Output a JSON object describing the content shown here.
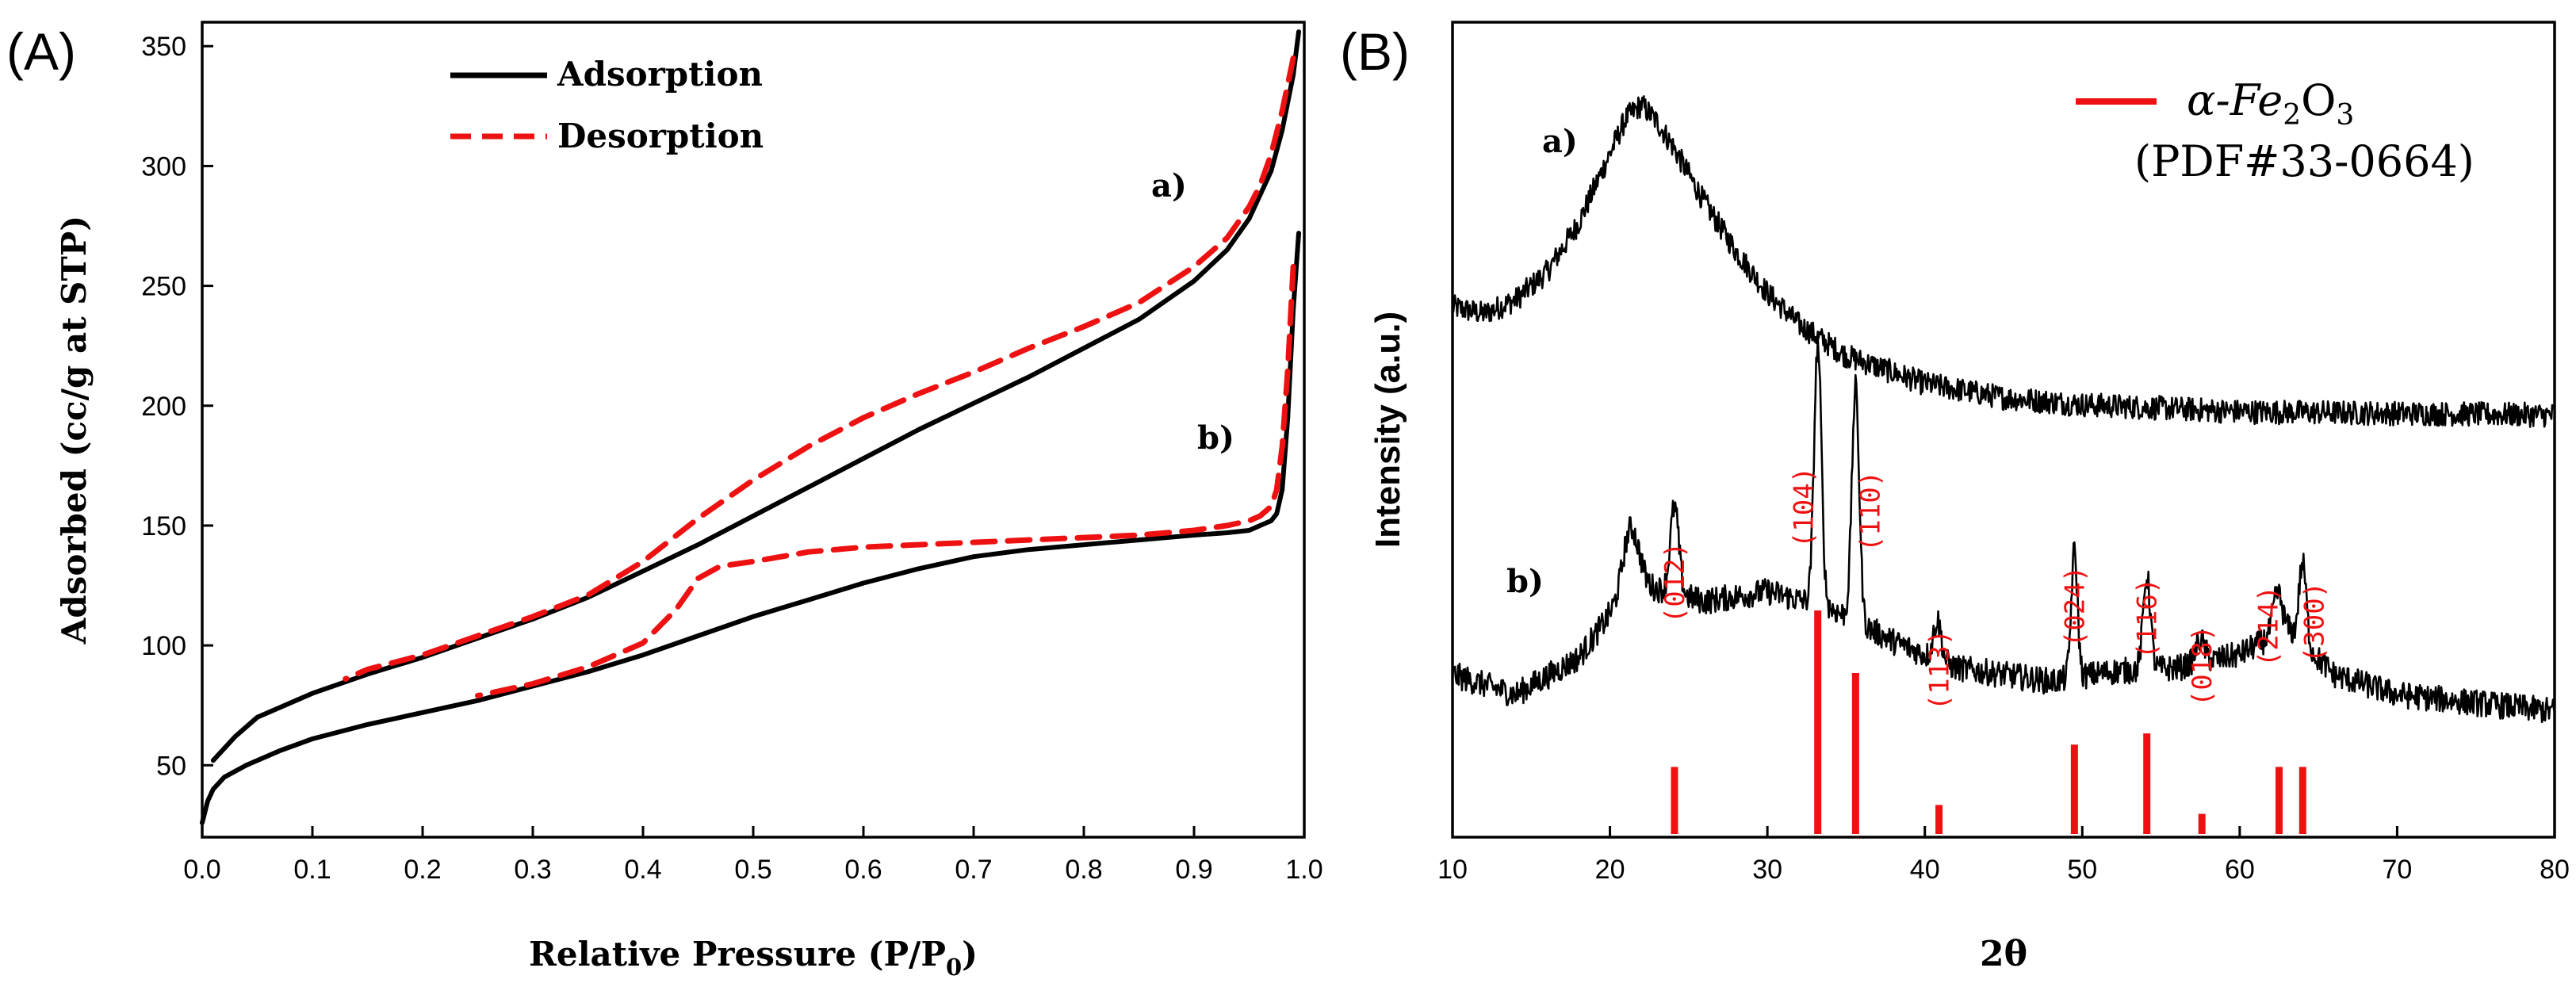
{
  "chart_data": [
    {
      "type": "line",
      "panel_label": "(A)",
      "xlabel": "Relative Pressure (P/P",
      "xlabel_sub": "0",
      "xlabel_close": ")",
      "ylabel": "Adsorbed (cc/g at STP)",
      "xlim": [
        0.0,
        1.0
      ],
      "ylim": [
        20,
        360
      ],
      "xticks": [
        0.0,
        0.1,
        0.2,
        0.3,
        0.4,
        0.5,
        0.6,
        0.7,
        0.8,
        0.9,
        1.0
      ],
      "xtick_labels": [
        "0.0",
        "0.1",
        "0.2",
        "0.3",
        "0.4",
        "0.5",
        "0.6",
        "0.7",
        "0.8",
        "0.9",
        "1.0"
      ],
      "yticks": [
        50,
        100,
        150,
        200,
        250,
        300,
        350
      ],
      "ytick_labels": [
        "50",
        "100",
        "150",
        "200",
        "250",
        "300",
        "350"
      ],
      "legend": [
        {
          "label": "Adsorption",
          "color": "#000000",
          "style": "solid"
        },
        {
          "label": "Desorption",
          "color": "#ee1111",
          "style": "dashed"
        }
      ],
      "annotations": [
        "a)",
        "b)"
      ],
      "series": [
        {
          "name": "a) Adsorption",
          "curve": "a",
          "kind": "adsorption",
          "x": [
            0.01,
            0.03,
            0.05,
            0.1,
            0.15,
            0.2,
            0.25,
            0.3,
            0.35,
            0.4,
            0.45,
            0.5,
            0.55,
            0.6,
            0.65,
            0.7,
            0.75,
            0.8,
            0.85,
            0.9,
            0.93,
            0.95,
            0.97,
            0.98,
            0.99,
            0.995
          ],
          "y": [
            52,
            62,
            70,
            80,
            88,
            95,
            103,
            111,
            120,
            131,
            142,
            154,
            166,
            178,
            190,
            201,
            212,
            224,
            236,
            252,
            265,
            278,
            298,
            315,
            338,
            356
          ]
        },
        {
          "name": "a) Desorption",
          "curve": "a",
          "kind": "desorption",
          "x": [
            0.99,
            0.98,
            0.97,
            0.96,
            0.95,
            0.93,
            0.9,
            0.85,
            0.8,
            0.75,
            0.7,
            0.65,
            0.6,
            0.55,
            0.5,
            0.45,
            0.4,
            0.35,
            0.3,
            0.25,
            0.2,
            0.15,
            0.13
          ],
          "y": [
            345,
            323,
            305,
            292,
            283,
            270,
            258,
            243,
            233,
            224,
            214,
            205,
            195,
            183,
            169,
            153,
            135,
            121,
            112,
            104,
            96,
            90,
            86
          ]
        },
        {
          "name": "b) Adsorption",
          "curve": "b",
          "kind": "adsorption",
          "x": [
            0.0,
            0.005,
            0.01,
            0.02,
            0.04,
            0.07,
            0.1,
            0.15,
            0.2,
            0.25,
            0.3,
            0.35,
            0.4,
            0.45,
            0.5,
            0.55,
            0.6,
            0.65,
            0.7,
            0.75,
            0.8,
            0.85,
            0.9,
            0.93,
            0.95,
            0.96,
            0.97,
            0.975,
            0.98,
            0.985,
            0.99,
            0.995
          ],
          "y": [
            26,
            35,
            40,
            45,
            50,
            56,
            61,
            67,
            72,
            77,
            83,
            89,
            96,
            104,
            112,
            119,
            126,
            132,
            137,
            140,
            142,
            144,
            146,
            147,
            148,
            150,
            152,
            155,
            165,
            195,
            240,
            272
          ]
        },
        {
          "name": "b) Desorption",
          "curve": "b",
          "kind": "desorption",
          "x": [
            0.99,
            0.985,
            0.98,
            0.975,
            0.97,
            0.96,
            0.95,
            0.93,
            0.9,
            0.85,
            0.8,
            0.75,
            0.7,
            0.65,
            0.6,
            0.55,
            0.5,
            0.47,
            0.45,
            0.43,
            0.4,
            0.35,
            0.3,
            0.25
          ],
          "y": [
            258,
            215,
            183,
            165,
            158,
            154,
            152,
            150,
            148,
            146,
            145,
            144,
            143,
            142,
            141,
            139,
            135,
            133,
            128,
            115,
            101,
            91,
            84,
            79
          ]
        }
      ]
    },
    {
      "type": "line",
      "panel_label": "(B)",
      "xlabel": "2θ",
      "ylabel": "Intensity (a.u.)",
      "xlim": [
        10,
        80
      ],
      "xticks": [
        10,
        20,
        30,
        40,
        50,
        60,
        70,
        80
      ],
      "xtick_labels": [
        "10",
        "20",
        "30",
        "40",
        "50",
        "60",
        "70",
        "80"
      ],
      "legend": [
        {
          "label_prefix": "α-Fe",
          "label_sub1": "2",
          "label_mid": "O",
          "label_sub2": "3",
          "label2": "(PDF#33-0664)",
          "color": "#ee1111",
          "style": "solid"
        }
      ],
      "annotations": [
        "a)",
        "b)"
      ],
      "series": [
        {
          "name": "a)",
          "description": "broad amorphous hump",
          "x": [
            10,
            12,
            14,
            16,
            18,
            20,
            21,
            22,
            23,
            24,
            26,
            28,
            30,
            32,
            35,
            40,
            45,
            50,
            55,
            60,
            70,
            80
          ],
          "y": [
            0.32,
            0.3,
            0.34,
            0.42,
            0.56,
            0.76,
            0.86,
            0.9,
            0.85,
            0.78,
            0.62,
            0.48,
            0.36,
            0.27,
            0.18,
            0.1,
            0.06,
            0.04,
            0.03,
            0.02,
            0.015,
            0.01
          ]
        },
        {
          "name": "b)",
          "description": "crystalline α-Fe2O3 pattern",
          "baseline_x": [
            10,
            14,
            18,
            20,
            22,
            26,
            30,
            34,
            38,
            42,
            48,
            52,
            56,
            60,
            63,
            66,
            70,
            74,
            80
          ],
          "baseline_y": [
            0.2,
            0.14,
            0.25,
            0.38,
            0.47,
            0.42,
            0.45,
            0.4,
            0.3,
            0.22,
            0.18,
            0.21,
            0.22,
            0.26,
            0.34,
            0.2,
            0.14,
            0.12,
            0.09
          ],
          "peaks": [
            {
              "x": 21.3,
              "h": 0.2,
              "w": 0.7
            },
            {
              "x": 24.1,
              "h": 0.26,
              "w": 0.38
            },
            {
              "x": 33.2,
              "h": 0.78,
              "w": 0.33
            },
            {
              "x": 35.6,
              "h": 0.7,
              "w": 0.33
            },
            {
              "x": 40.8,
              "h": 0.12,
              "w": 0.35
            },
            {
              "x": 49.5,
              "h": 0.38,
              "w": 0.28
            },
            {
              "x": 54.1,
              "h": 0.28,
              "w": 0.33
            },
            {
              "x": 57.5,
              "h": 0.07,
              "w": 0.4
            },
            {
              "x": 62.4,
              "h": 0.12,
              "w": 0.4
            },
            {
              "x": 64.0,
              "h": 0.24,
              "w": 0.33
            }
          ]
        },
        {
          "name": "α-Fe2O3 (PDF#33-0664)",
          "type": "reference_sticks",
          "x": [
            24.1,
            33.2,
            35.6,
            40.9,
            49.5,
            54.1,
            57.6,
            62.5,
            64.0
          ],
          "rel_intensity": [
            30,
            100,
            72,
            13,
            40,
            45,
            9,
            30,
            30
          ],
          "hkl": [
            "(012)",
            "(104)",
            "(110)",
            "(113)",
            "(024)",
            "(116)",
            "(018)",
            "(214)",
            "(300)"
          ]
        }
      ]
    }
  ]
}
